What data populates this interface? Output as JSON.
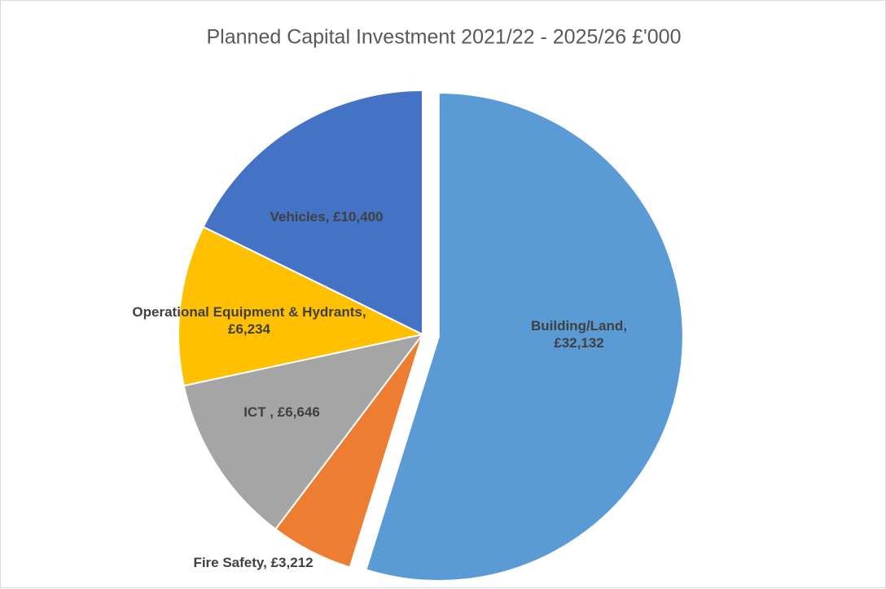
{
  "chart_data": {
    "type": "pie",
    "title": "Planned Capital Investment 2021/22 - 2025/26 £'000",
    "categories": [
      "Building/Land,",
      "Fire Safety,",
      "ICT ,",
      "Operational Equipment & Hydrants,",
      "Vehicles,"
    ],
    "values": [
      32132,
      3212,
      6646,
      6234,
      10400
    ],
    "value_labels": [
      "£32,132",
      "£3,212",
      "£6,646",
      "£6,234",
      "£10,400"
    ],
    "colors": [
      "#5b9bd5",
      "#ed7d31",
      "#a5a5a5",
      "#ffc000",
      "#4472c4"
    ]
  }
}
